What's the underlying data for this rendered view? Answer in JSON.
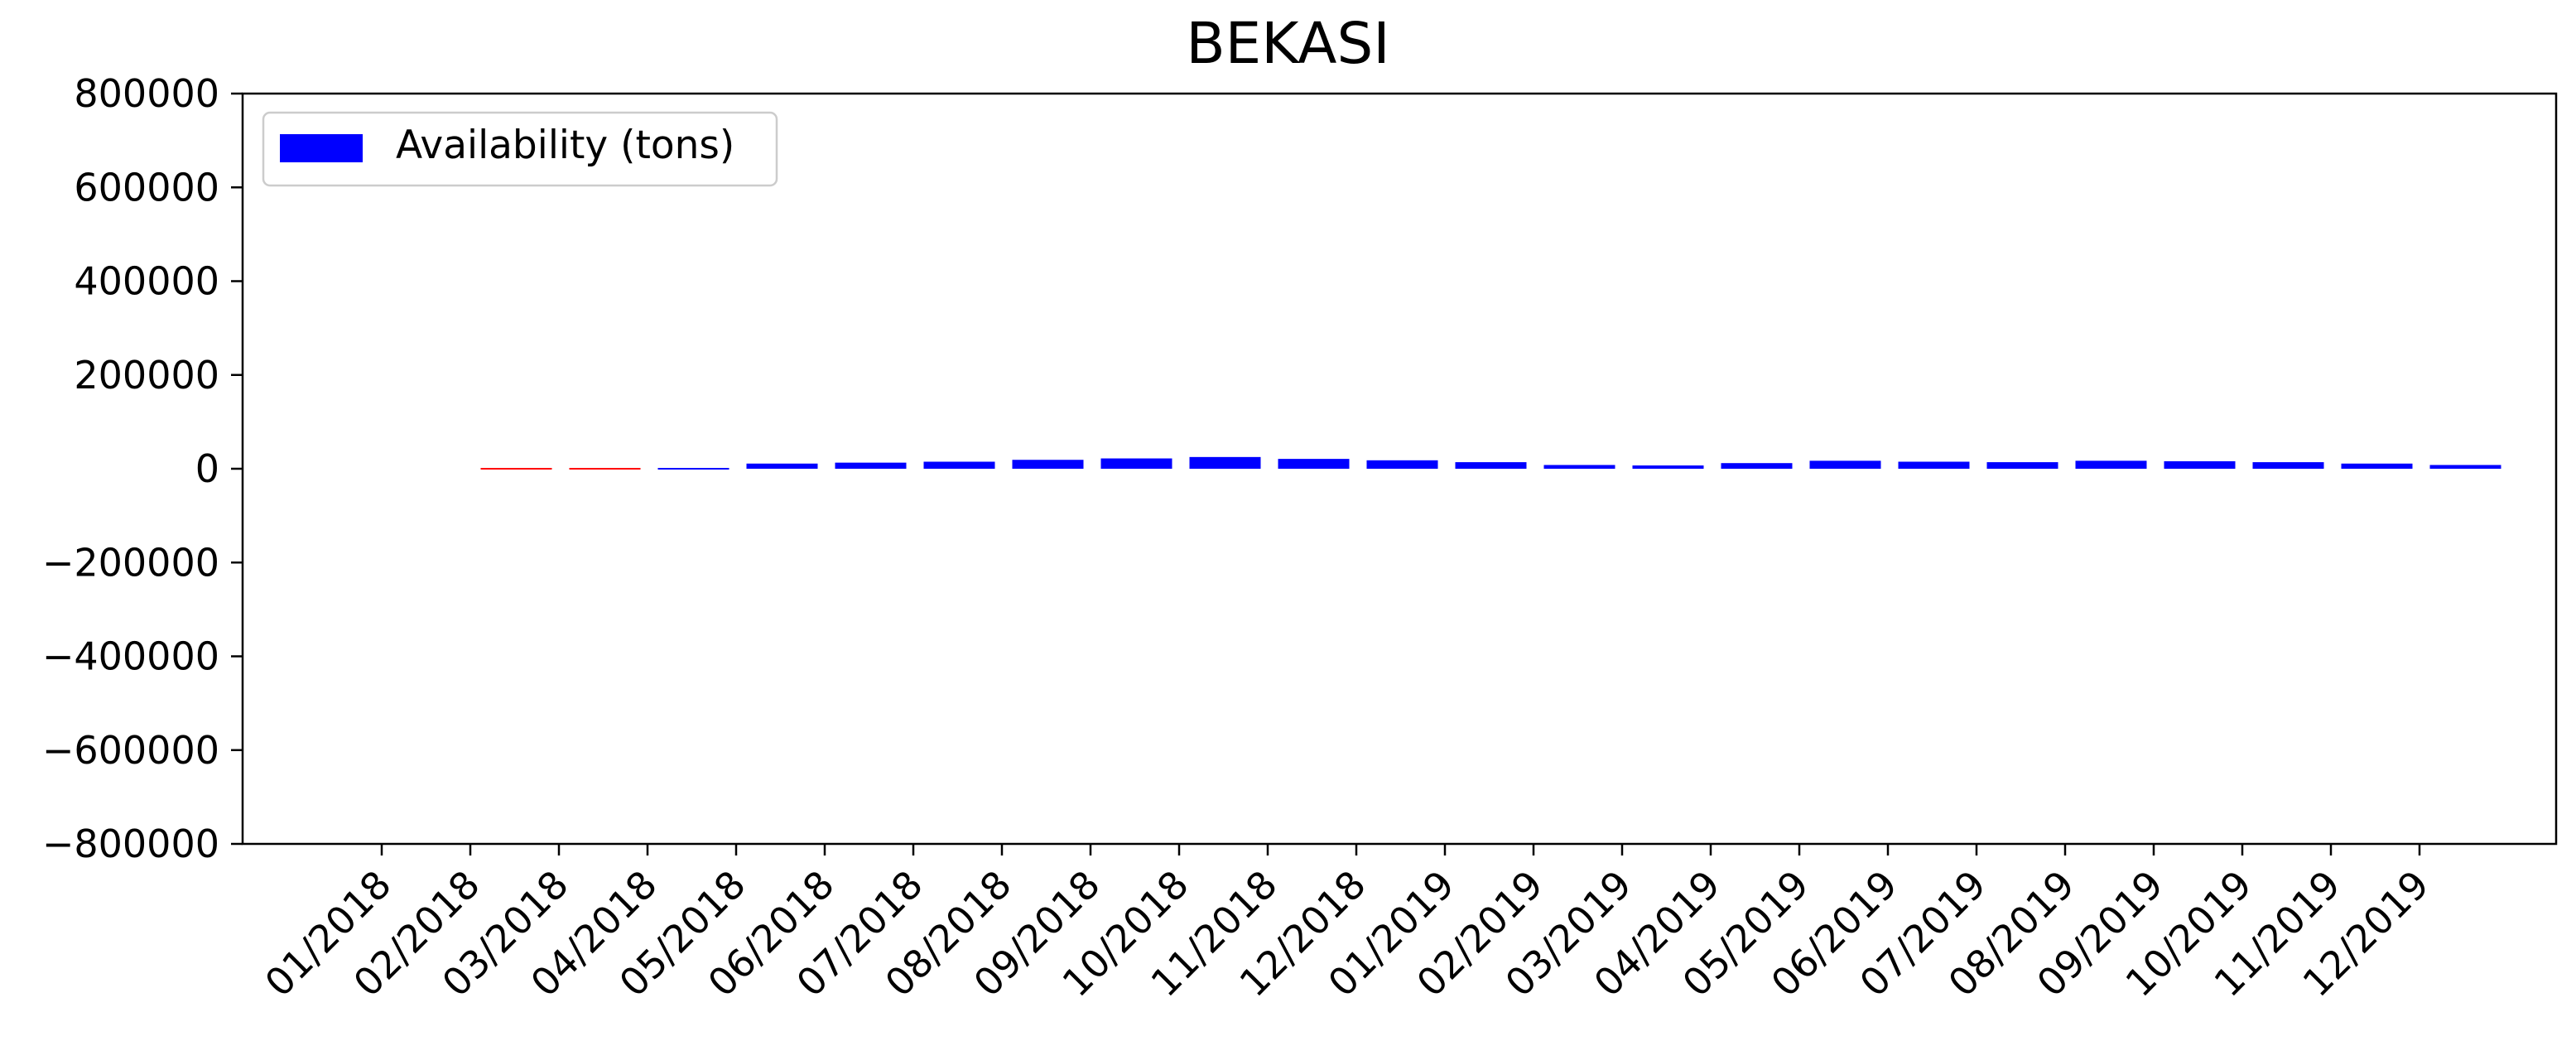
{
  "chart_data": {
    "type": "bar",
    "title": "BEKASI",
    "xlabel": "",
    "ylabel": "",
    "ylim": [
      -800000,
      800000
    ],
    "yticks": [
      800000,
      600000,
      400000,
      200000,
      0,
      -200000,
      -400000,
      -600000,
      -800000
    ],
    "ytick_labels": [
      "800000",
      "600000",
      "400000",
      "200000",
      "0",
      "−200000",
      "−400000",
      "−600000",
      "−800000"
    ],
    "categories": [
      "01/2018",
      "02/2018",
      "03/2018",
      "04/2018",
      "05/2018",
      "06/2018",
      "07/2018",
      "08/2018",
      "09/2018",
      "10/2018",
      "11/2018",
      "12/2018",
      "01/2019",
      "02/2019",
      "03/2019",
      "04/2019",
      "05/2019",
      "06/2019",
      "07/2019",
      "08/2019",
      "09/2019",
      "10/2019",
      "11/2019",
      "12/2019"
    ],
    "series": [
      {
        "name": "Availability (tons)",
        "color": "#0000ff",
        "negative_color": "#ff0000",
        "values": [
          0,
          -1500,
          -1000,
          3000,
          11000,
          13000,
          15000,
          19000,
          22000,
          25000,
          21000,
          18000,
          14000,
          8000,
          7000,
          12000,
          17000,
          15000,
          14000,
          17000,
          16000,
          14000,
          11000,
          8000
        ]
      }
    ],
    "grid": false,
    "legend_position": "upper-left"
  }
}
